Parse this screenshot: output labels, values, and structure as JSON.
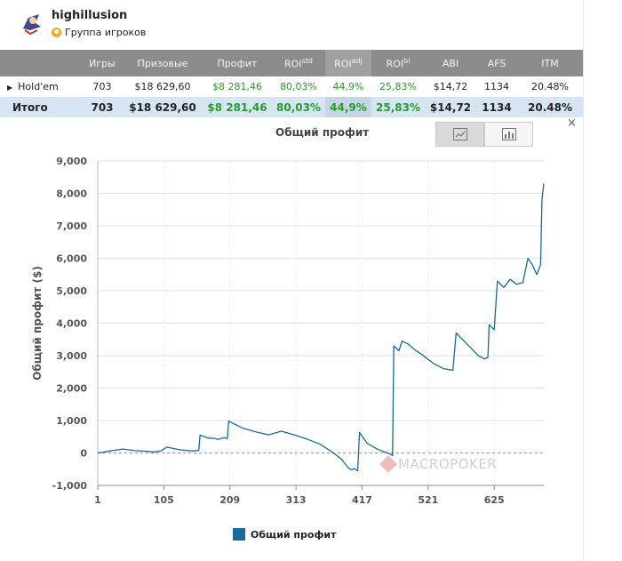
{
  "user": {
    "name": "highillusion",
    "group": "Группа игроков"
  },
  "table": {
    "headers": [
      "",
      "Игры",
      "Призовые",
      "Профит",
      "ROI",
      "ROI",
      "ROI",
      "ABI",
      "AFS",
      "ITM"
    ],
    "roi_sups": [
      "std",
      "adj",
      "bi"
    ],
    "rows": [
      {
        "cells": [
          "Hold'em",
          "703",
          "$18 629,60",
          "$8 281,46",
          "80,03%",
          "44,9%",
          "25,83%",
          "$14,72",
          "1134",
          "20.48%"
        ]
      }
    ],
    "total": {
      "cells": [
        "Итого",
        "703",
        "$18 629,60",
        "$8 281,46",
        "80,03%",
        "44,9%",
        "25,83%",
        "$14,72",
        "1134",
        "20.48%"
      ]
    }
  },
  "close_label": "×",
  "watermark": "MACROPOKER",
  "chart_data": {
    "type": "line",
    "title": "Общий профит",
    "xlabel": "",
    "ylabel": "Общий профит ($)",
    "xlim": [
      1,
      703
    ],
    "ylim": [
      -1000,
      9000
    ],
    "x_ticks": [
      1,
      105,
      209,
      313,
      417,
      521,
      625
    ],
    "y_ticks": [
      -1000,
      0,
      1000,
      2000,
      3000,
      4000,
      5000,
      6000,
      7000,
      8000,
      9000
    ],
    "y_tick_labels": [
      "-1,000",
      "0",
      "1,000",
      "2,000",
      "3,000",
      "4,000",
      "5,000",
      "6,000",
      "7,000",
      "8,000",
      "9,000"
    ],
    "grid": true,
    "legend": "bottom",
    "color": "#176a99",
    "series": [
      {
        "name": "Общий профит",
        "x": [
          1,
          20,
          40,
          60,
          80,
          90,
          100,
          110,
          130,
          150,
          160,
          162,
          175,
          185,
          190,
          200,
          205,
          207,
          215,
          230,
          250,
          270,
          290,
          313,
          330,
          350,
          370,
          385,
          395,
          400,
          405,
          410,
          413,
          425,
          440,
          450,
          460,
          465,
          467,
          475,
          480,
          490,
          500,
          510,
          520,
          530,
          545,
          560,
          565,
          575,
          590,
          600,
          610,
          615,
          617,
          625,
          630,
          640,
          650,
          660,
          670,
          678,
          685,
          692,
          695,
          698,
          700,
          703
        ],
        "values": [
          0,
          60,
          120,
          70,
          50,
          30,
          60,
          180,
          100,
          60,
          80,
          550,
          460,
          450,
          420,
          470,
          440,
          980,
          900,
          760,
          650,
          560,
          670,
          540,
          430,
          280,
          30,
          -200,
          -450,
          -520,
          -480,
          -550,
          630,
          300,
          130,
          50,
          -20,
          -80,
          3300,
          3150,
          3450,
          3350,
          3180,
          3050,
          2900,
          2750,
          2600,
          2550,
          3700,
          3500,
          3200,
          3000,
          2900,
          2950,
          3950,
          3800,
          5300,
          5100,
          5350,
          5200,
          5250,
          6000,
          5800,
          5500,
          5650,
          5800,
          7800,
          8300
        ]
      }
    ]
  }
}
